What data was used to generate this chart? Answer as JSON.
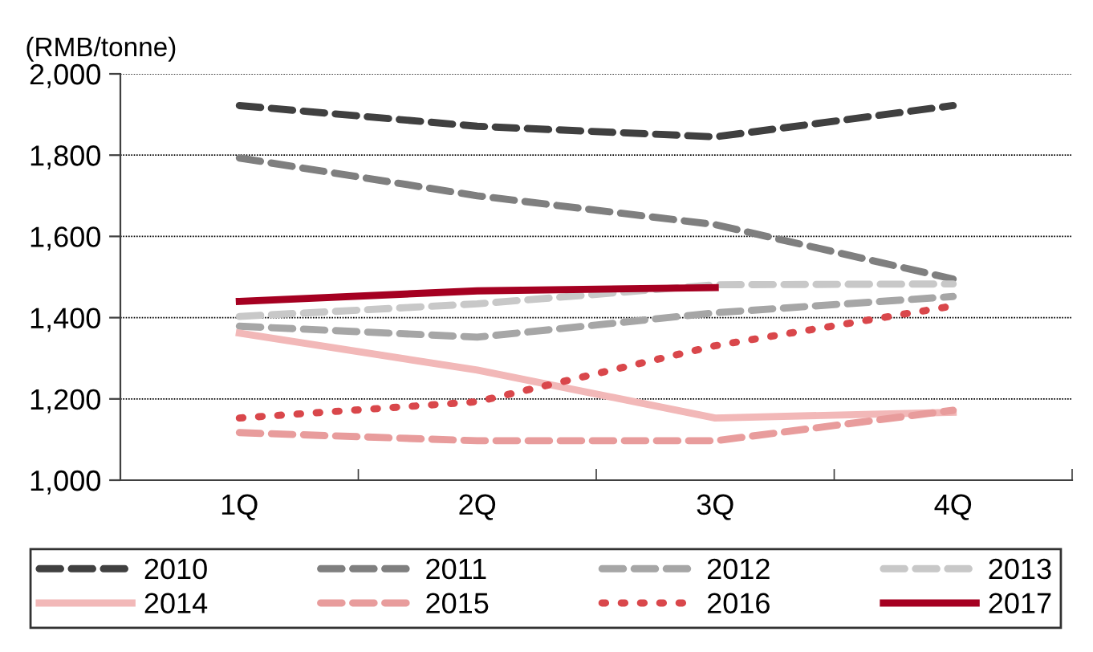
{
  "chart_data": {
    "type": "line",
    "ylabel": "(RMB/tonne)",
    "categories": [
      "1Q",
      "2Q",
      "3Q",
      "4Q"
    ],
    "ylim": [
      1000,
      2000
    ],
    "yticks": [
      {
        "value": 1000,
        "label": "1,000"
      },
      {
        "value": 1200,
        "label": "1,200"
      },
      {
        "value": 1400,
        "label": "1,400"
      },
      {
        "value": 1600,
        "label": "1,600"
      },
      {
        "value": 1800,
        "label": "1,800"
      },
      {
        "value": 2000,
        "label": "2,000"
      }
    ],
    "grid": "y",
    "legend": "bottom",
    "marker": "none",
    "series": [
      {
        "name": "2010",
        "color": "#404040",
        "line_style": "dashed",
        "values": [
          1922,
          1871,
          1845,
          1922
        ]
      },
      {
        "name": "2011",
        "color": "#7f7f7f",
        "line_style": "dashed",
        "values": [
          1793,
          1700,
          1629,
          1495
        ]
      },
      {
        "name": "2012",
        "color": "#a6a6a6",
        "line_style": "dashed",
        "values": [
          1379,
          1352,
          1412,
          1452
        ]
      },
      {
        "name": "2013",
        "color": "#c8c8c8",
        "line_style": "dashed",
        "values": [
          1403,
          1434,
          1481,
          1483
        ]
      },
      {
        "name": "2014",
        "color": "#f2b8b8",
        "line_style": "solid",
        "values": [
          1362,
          1271,
          1153,
          1167
        ]
      },
      {
        "name": "2015",
        "color": "#e89c9c",
        "line_style": "dashed",
        "values": [
          1117,
          1097,
          1097,
          1172
        ]
      },
      {
        "name": "2016",
        "color": "#d9474b",
        "line_style": "dotted",
        "values": [
          1153,
          1193,
          1331,
          1429
        ]
      },
      {
        "name": "2017",
        "color": "#a50021",
        "line_style": "solid",
        "values": [
          1440,
          1466,
          1474,
          null
        ]
      }
    ]
  }
}
